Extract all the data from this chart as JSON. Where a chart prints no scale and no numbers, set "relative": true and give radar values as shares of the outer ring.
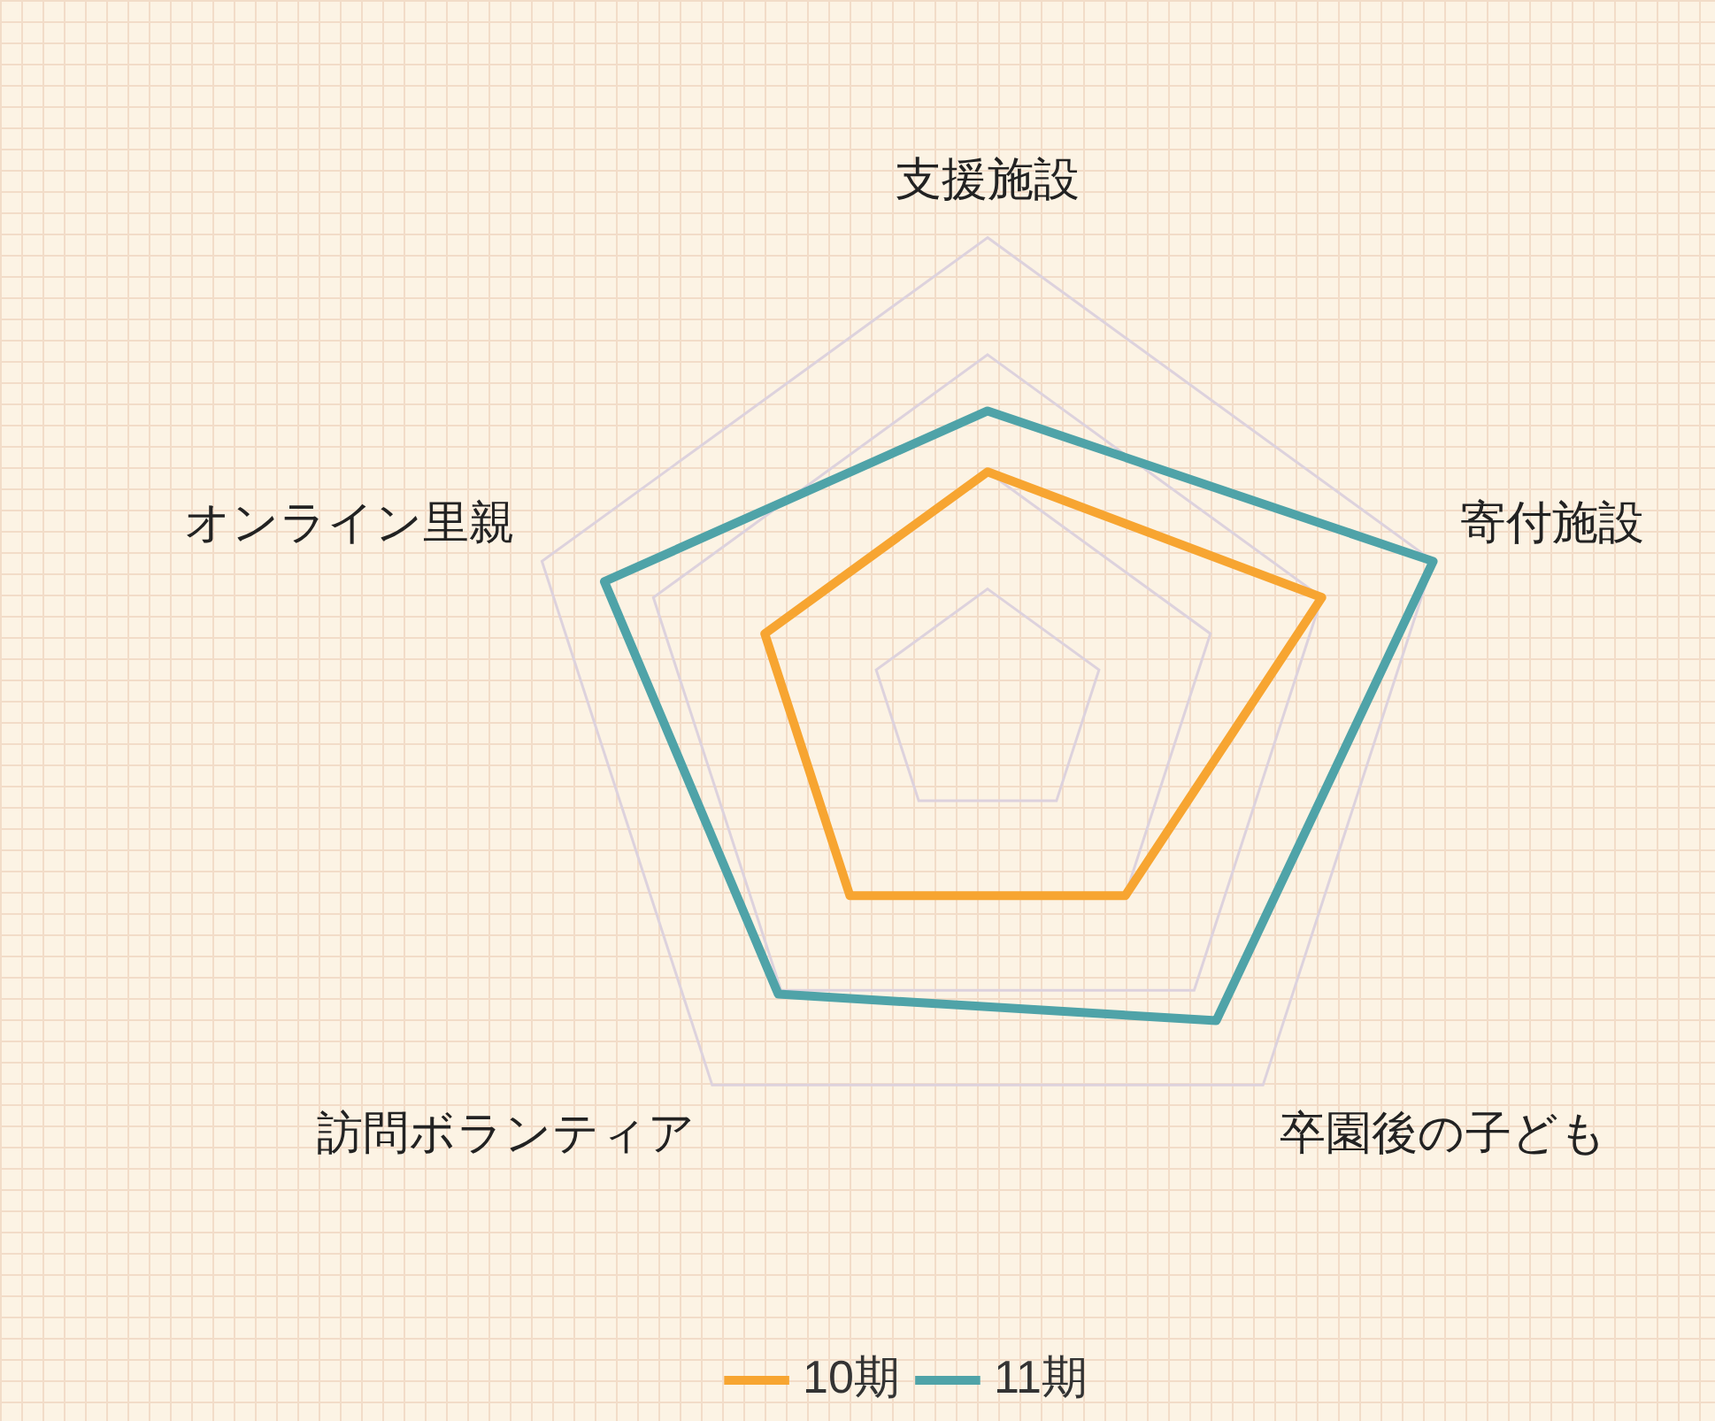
{
  "chart_data": {
    "type": "radar",
    "relative": true,
    "categories": [
      "支援施設",
      "寄付施設",
      "卒園後の子ども",
      "訪問ボランティア",
      "オンライン里親"
    ],
    "series": [
      {
        "name": "10期",
        "color": "#f7a531",
        "values": [
          0.5,
          0.75,
          0.5,
          0.5,
          0.5
        ]
      },
      {
        "name": "11期",
        "color": "#4fa3a8",
        "values": [
          0.63,
          1.0,
          0.83,
          0.76,
          0.86
        ]
      }
    ],
    "legend": "bottom",
    "grid": true,
    "marker": "none"
  }
}
